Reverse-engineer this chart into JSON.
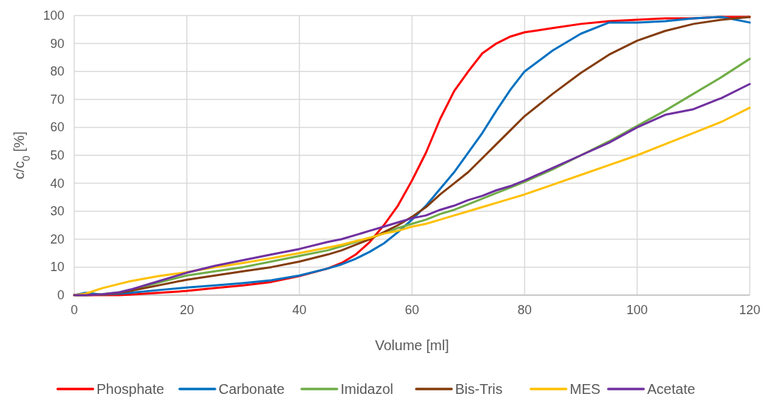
{
  "chart_data": {
    "type": "line",
    "xlabel": "Volume [ml]",
    "ylabel": "c/c$_{0}$ [%]",
    "xlim": [
      0,
      120
    ],
    "xticks": [
      0,
      20,
      40,
      60,
      80,
      100,
      120
    ],
    "ylim": [
      0,
      100
    ],
    "yticks": [
      0,
      10,
      20,
      30,
      40,
      50,
      60,
      70,
      80,
      90,
      100
    ],
    "grid": true,
    "legend": "bottom",
    "marker": "none",
    "line_style": "solid",
    "x": [
      0,
      2,
      5,
      8,
      10,
      15,
      20,
      25,
      30,
      35,
      40,
      45,
      47.5,
      50,
      52.5,
      55,
      57.5,
      60,
      62.5,
      65,
      67.5,
      70,
      72.5,
      75,
      77.5,
      80,
      85,
      90,
      95,
      100,
      105,
      110,
      115,
      120
    ],
    "series": [
      {
        "name": "Phosphate",
        "color": "#ff0000",
        "values": [
          0,
          0,
          0,
          0,
          0.2,
          0.8,
          1.5,
          2.5,
          3.5,
          4.7,
          6.8,
          9.5,
          11.5,
          14.5,
          19,
          25,
          32,
          41,
          51,
          63,
          73,
          80,
          86.5,
          90,
          92.5,
          94,
          95.5,
          97,
          98,
          98.5,
          99,
          99,
          99.5,
          99.5
        ]
      },
      {
        "name": "Carbonate",
        "color": "#0070c0",
        "values": [
          0,
          0.8,
          0.2,
          0.5,
          0.8,
          1.8,
          2.7,
          3.5,
          4.3,
          5.3,
          7,
          9.5,
          11,
          13,
          15.5,
          18.5,
          22.5,
          27,
          32,
          38,
          44,
          51,
          58,
          66,
          73.5,
          80,
          87.5,
          93.5,
          97.5,
          97.5,
          98,
          99,
          99.5,
          97.5
        ]
      },
      {
        "name": "Imidazol",
        "color": "#70ad47",
        "values": [
          0,
          0,
          0.3,
          1,
          1.8,
          4.5,
          7,
          8.5,
          10,
          12,
          14,
          16,
          17.5,
          19,
          20.5,
          22,
          24,
          25.5,
          27,
          29,
          30.5,
          32.5,
          34.5,
          36.5,
          38.5,
          40.5,
          45,
          50,
          55,
          60.5,
          66,
          72,
          78,
          84.5
        ]
      },
      {
        "name": "Bis-Tris",
        "color": "#843c0c",
        "values": [
          0,
          0,
          0.2,
          0.8,
          1.5,
          3.5,
          5.5,
          7,
          8.5,
          10,
          12,
          14.5,
          16,
          18,
          20,
          22.5,
          25,
          28,
          31.5,
          36,
          40,
          44,
          49,
          54,
          59,
          64,
          72,
          79.5,
          86,
          91,
          94.5,
          97,
          98.5,
          99.5
        ]
      },
      {
        "name": "MES",
        "color": "#ffc000",
        "values": [
          0,
          0.5,
          2.5,
          4,
          5,
          6.8,
          8.2,
          10,
          11.5,
          13.2,
          15,
          17,
          18,
          19.3,
          20.5,
          22,
          23,
          24.5,
          25.5,
          27,
          28.5,
          30,
          31.5,
          33,
          34.5,
          36,
          39.5,
          43,
          46.5,
          50,
          54,
          58,
          62,
          67
        ]
      },
      {
        "name": "Acetate",
        "color": "#7030a0",
        "values": [
          0,
          0,
          0.3,
          1,
          2,
          5,
          8,
          10.5,
          12.5,
          14.5,
          16.5,
          19,
          20,
          21.5,
          23,
          24.5,
          26,
          27.5,
          28.5,
          30.5,
          32,
          34,
          35.5,
          37.5,
          39,
          41,
          45.5,
          50,
          54.5,
          60,
          64.5,
          66.5,
          70.5,
          75.5
        ]
      }
    ]
  }
}
